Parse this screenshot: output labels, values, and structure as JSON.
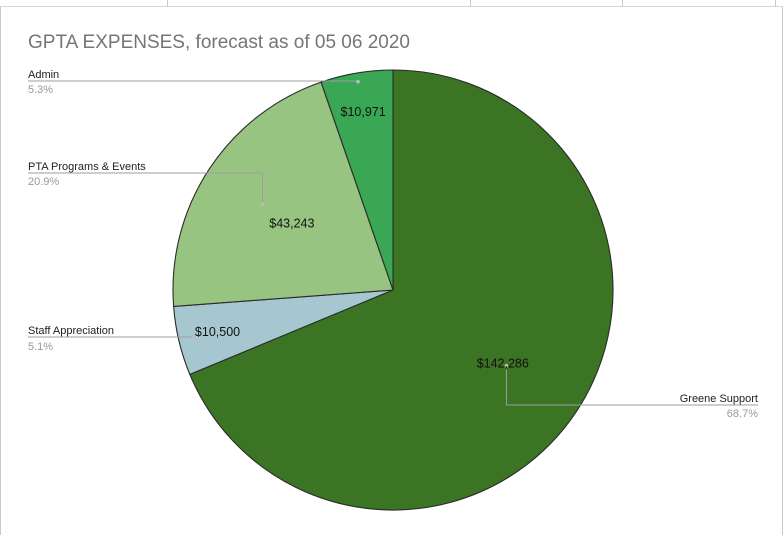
{
  "chart_data": {
    "type": "pie",
    "title": "GPTA EXPENSES, forecast as of 05 06 2020",
    "slices": [
      {
        "name": "Greene Support",
        "value": 142286,
        "value_label": "$142,286",
        "percent_label": "68.7%",
        "color": "#3b7423"
      },
      {
        "name": "Staff Appreciation",
        "value": 10500,
        "value_label": "$10,500",
        "percent_label": "5.1%",
        "color": "#a6c7cf"
      },
      {
        "name": "PTA Programs & Events",
        "value": 43243,
        "value_label": "$43,243",
        "percent_label": "20.9%",
        "color": "#97c581"
      },
      {
        "name": "Admin",
        "value": 10971,
        "value_label": "$10,971",
        "percent_label": "5.3%",
        "color": "#3aa755"
      }
    ],
    "start": "12 o'clock",
    "direction": "clockwise",
    "legend": "callout labels beside slices"
  }
}
